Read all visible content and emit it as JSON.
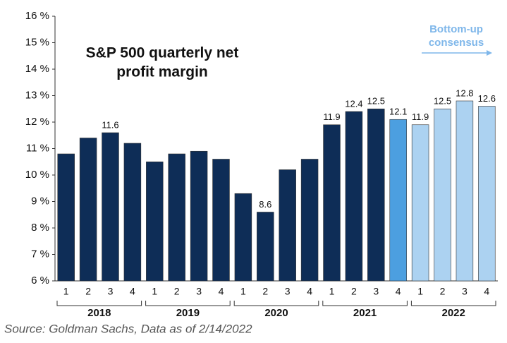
{
  "chart_data": {
    "type": "bar",
    "title_lines": [
      "S&P 500 quarterly net",
      "profit margin"
    ],
    "annotation_lines": [
      "Bottom-up",
      "consensus"
    ],
    "source": "Source: Goldman Sachs, Data as of 2/14/2022",
    "categories": [
      "1",
      "2",
      "3",
      "4",
      "1",
      "2",
      "3",
      "4",
      "1",
      "2",
      "3",
      "4",
      "1",
      "2",
      "3",
      "4",
      "1",
      "2",
      "3",
      "4"
    ],
    "groups": [
      "2018",
      "2019",
      "2020",
      "2021",
      "2022"
    ],
    "values": [
      10.8,
      11.4,
      11.6,
      11.2,
      10.5,
      10.8,
      10.9,
      10.6,
      9.3,
      8.6,
      10.2,
      10.6,
      11.9,
      12.4,
      12.5,
      12.1,
      11.9,
      12.5,
      12.8,
      12.6
    ],
    "value_labels": [
      null,
      null,
      "11.6",
      null,
      null,
      null,
      null,
      null,
      null,
      "8.6",
      null,
      null,
      "11.9",
      "12.4",
      "12.5",
      "12.1",
      "11.9",
      "12.5",
      "12.8",
      "12.6"
    ],
    "colors": [
      "#0e2d57",
      "#0e2d57",
      "#0e2d57",
      "#0e2d57",
      "#0e2d57",
      "#0e2d57",
      "#0e2d57",
      "#0e2d57",
      "#0e2d57",
      "#0e2d57",
      "#0e2d57",
      "#0e2d57",
      "#0e2d57",
      "#0e2d57",
      "#0e2d57",
      "#4c9fe0",
      "#acd2f1",
      "#acd2f1",
      "#acd2f1",
      "#acd2f1"
    ],
    "ylim": [
      6,
      16
    ],
    "yticks": [
      {
        "value": 6,
        "label": "6 %"
      },
      {
        "value": 7,
        "label": "7 %"
      },
      {
        "value": 8,
        "label": "8 %"
      },
      {
        "value": 9,
        "label": "9 %"
      },
      {
        "value": 10,
        "label": "10 %"
      },
      {
        "value": 11,
        "label": "11 %"
      },
      {
        "value": 12,
        "label": "12 %"
      },
      {
        "value": 13,
        "label": "13 %"
      },
      {
        "value": 14,
        "label": "14 %"
      },
      {
        "value": 15,
        "label": "15 %"
      },
      {
        "value": 16,
        "label": "16 %"
      }
    ],
    "grid": false
  }
}
